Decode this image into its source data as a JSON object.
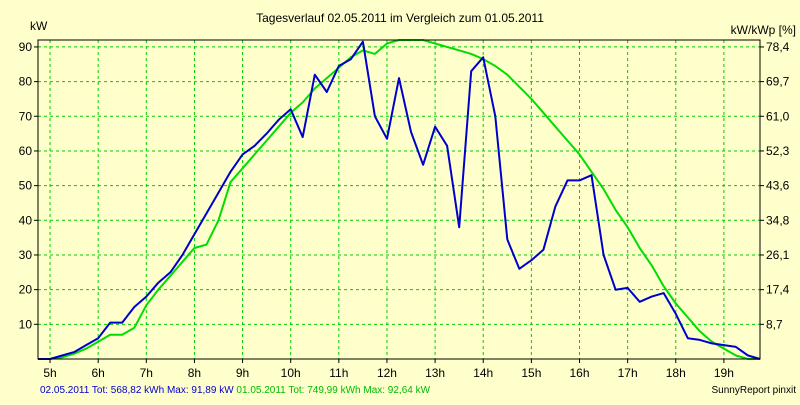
{
  "chart_data": {
    "type": "line",
    "title": "Tagesverlauf 02.05.2011 im Vergleich zum 01.05.2011",
    "ylabel_left": "kW",
    "ylabel_right": "kW/kWp [%]",
    "xlim": [
      4.75,
      19.75
    ],
    "ylim": [
      0,
      92
    ],
    "x_ticks": [
      5,
      6,
      7,
      8,
      9,
      10,
      11,
      12,
      13,
      14,
      15,
      16,
      17,
      18,
      19
    ],
    "x_tick_labels": [
      "5h",
      "6h",
      "7h",
      "8h",
      "9h",
      "10h",
      "11h",
      "12h",
      "13h",
      "14h",
      "15h",
      "16h",
      "17h",
      "18h",
      "19h"
    ],
    "y_ticks_left": [
      10,
      20,
      30,
      40,
      50,
      60,
      70,
      80,
      90
    ],
    "y_tick_labels_left": [
      "10",
      "20",
      "30",
      "40",
      "50",
      "60",
      "70",
      "80",
      "90"
    ],
    "y_ticks_right": [
      10,
      20,
      30,
      40,
      50,
      60,
      70,
      80,
      90
    ],
    "y_tick_labels_right": [
      "8,7",
      "17,4",
      "26,1",
      "34,8",
      "43,6",
      "52,3",
      "61,0",
      "69,7",
      "78,4"
    ],
    "grid": true,
    "colors": {
      "background": "#ffffcc",
      "grid": "#00cc00",
      "frame": "#000000"
    },
    "series": [
      {
        "name": "02.05.2011",
        "color": "#0000cc",
        "x": [
          4.75,
          5.0,
          5.25,
          5.5,
          5.75,
          6.0,
          6.25,
          6.5,
          6.75,
          7.0,
          7.25,
          7.5,
          7.75,
          8.0,
          8.25,
          8.5,
          8.75,
          9.0,
          9.25,
          9.5,
          9.75,
          10.0,
          10.25,
          10.5,
          10.75,
          11.0,
          11.25,
          11.5,
          11.75,
          12.0,
          12.25,
          12.5,
          12.75,
          13.0,
          13.25,
          13.5,
          13.75,
          14.0,
          14.25,
          14.5,
          14.75,
          15.0,
          15.25,
          15.5,
          15.75,
          16.0,
          16.25,
          16.5,
          16.75,
          17.0,
          17.25,
          17.5,
          17.75,
          18.0,
          18.25,
          18.5,
          18.75,
          19.0,
          19.25,
          19.5,
          19.75
        ],
        "y": [
          0,
          0,
          1,
          2,
          4,
          6,
          10.5,
          10.5,
          15,
          18,
          22,
          25,
          30,
          36,
          42,
          48,
          54,
          59,
          61.5,
          65,
          69,
          72,
          64,
          82,
          77,
          84.5,
          86.5,
          91.5,
          70,
          63.5,
          81,
          65.5,
          56,
          67,
          61.5,
          38,
          83,
          87,
          70,
          34.5,
          26,
          28.5,
          31.5,
          44,
          51.5,
          51.5,
          53,
          30,
          20,
          20.5,
          16.5,
          18,
          19,
          13,
          6,
          5.5,
          4.5,
          4,
          3.5,
          1,
          0
        ]
      },
      {
        "name": "01.05.2011",
        "color": "#00dd00",
        "x": [
          4.75,
          5.0,
          5.25,
          5.5,
          5.75,
          6.0,
          6.25,
          6.5,
          6.75,
          7.0,
          7.25,
          7.5,
          7.75,
          8.0,
          8.25,
          8.5,
          8.75,
          9.0,
          9.25,
          9.5,
          9.75,
          10.0,
          10.25,
          10.5,
          10.75,
          11.0,
          11.25,
          11.5,
          11.75,
          12.0,
          12.25,
          12.5,
          12.75,
          13.0,
          13.25,
          13.5,
          13.75,
          14.0,
          14.25,
          14.5,
          14.75,
          15.0,
          15.25,
          15.5,
          15.75,
          16.0,
          16.25,
          16.5,
          16.75,
          17.0,
          17.25,
          17.5,
          17.75,
          18.0,
          18.25,
          18.5,
          18.75,
          19.0,
          19.25,
          19.5,
          19.75
        ],
        "y": [
          0,
          0,
          0.5,
          1.5,
          3,
          5,
          7,
          7,
          9,
          15.5,
          20,
          24,
          28,
          32,
          33,
          40,
          51,
          55,
          59,
          63,
          67,
          71,
          74,
          78,
          81,
          84,
          87,
          89,
          88,
          91,
          92,
          92,
          92,
          91,
          90,
          89,
          88,
          86.5,
          84.5,
          82,
          78.5,
          75,
          71,
          67,
          63,
          59,
          54,
          49,
          43,
          38,
          32,
          27,
          21,
          16,
          12,
          8,
          5,
          3,
          1,
          0,
          0
        ]
      }
    ],
    "footer_left": [
      {
        "text": "02.05.2011 Tot: 568,82 kWh Max: 91,89 kW",
        "color": "#0000cc"
      },
      {
        "text": "01.05.2011 Tot: 749,99 kWh Max: 92,64 kW",
        "color": "#00bb00"
      }
    ],
    "footer_right": "SunnyReport pinxit"
  }
}
